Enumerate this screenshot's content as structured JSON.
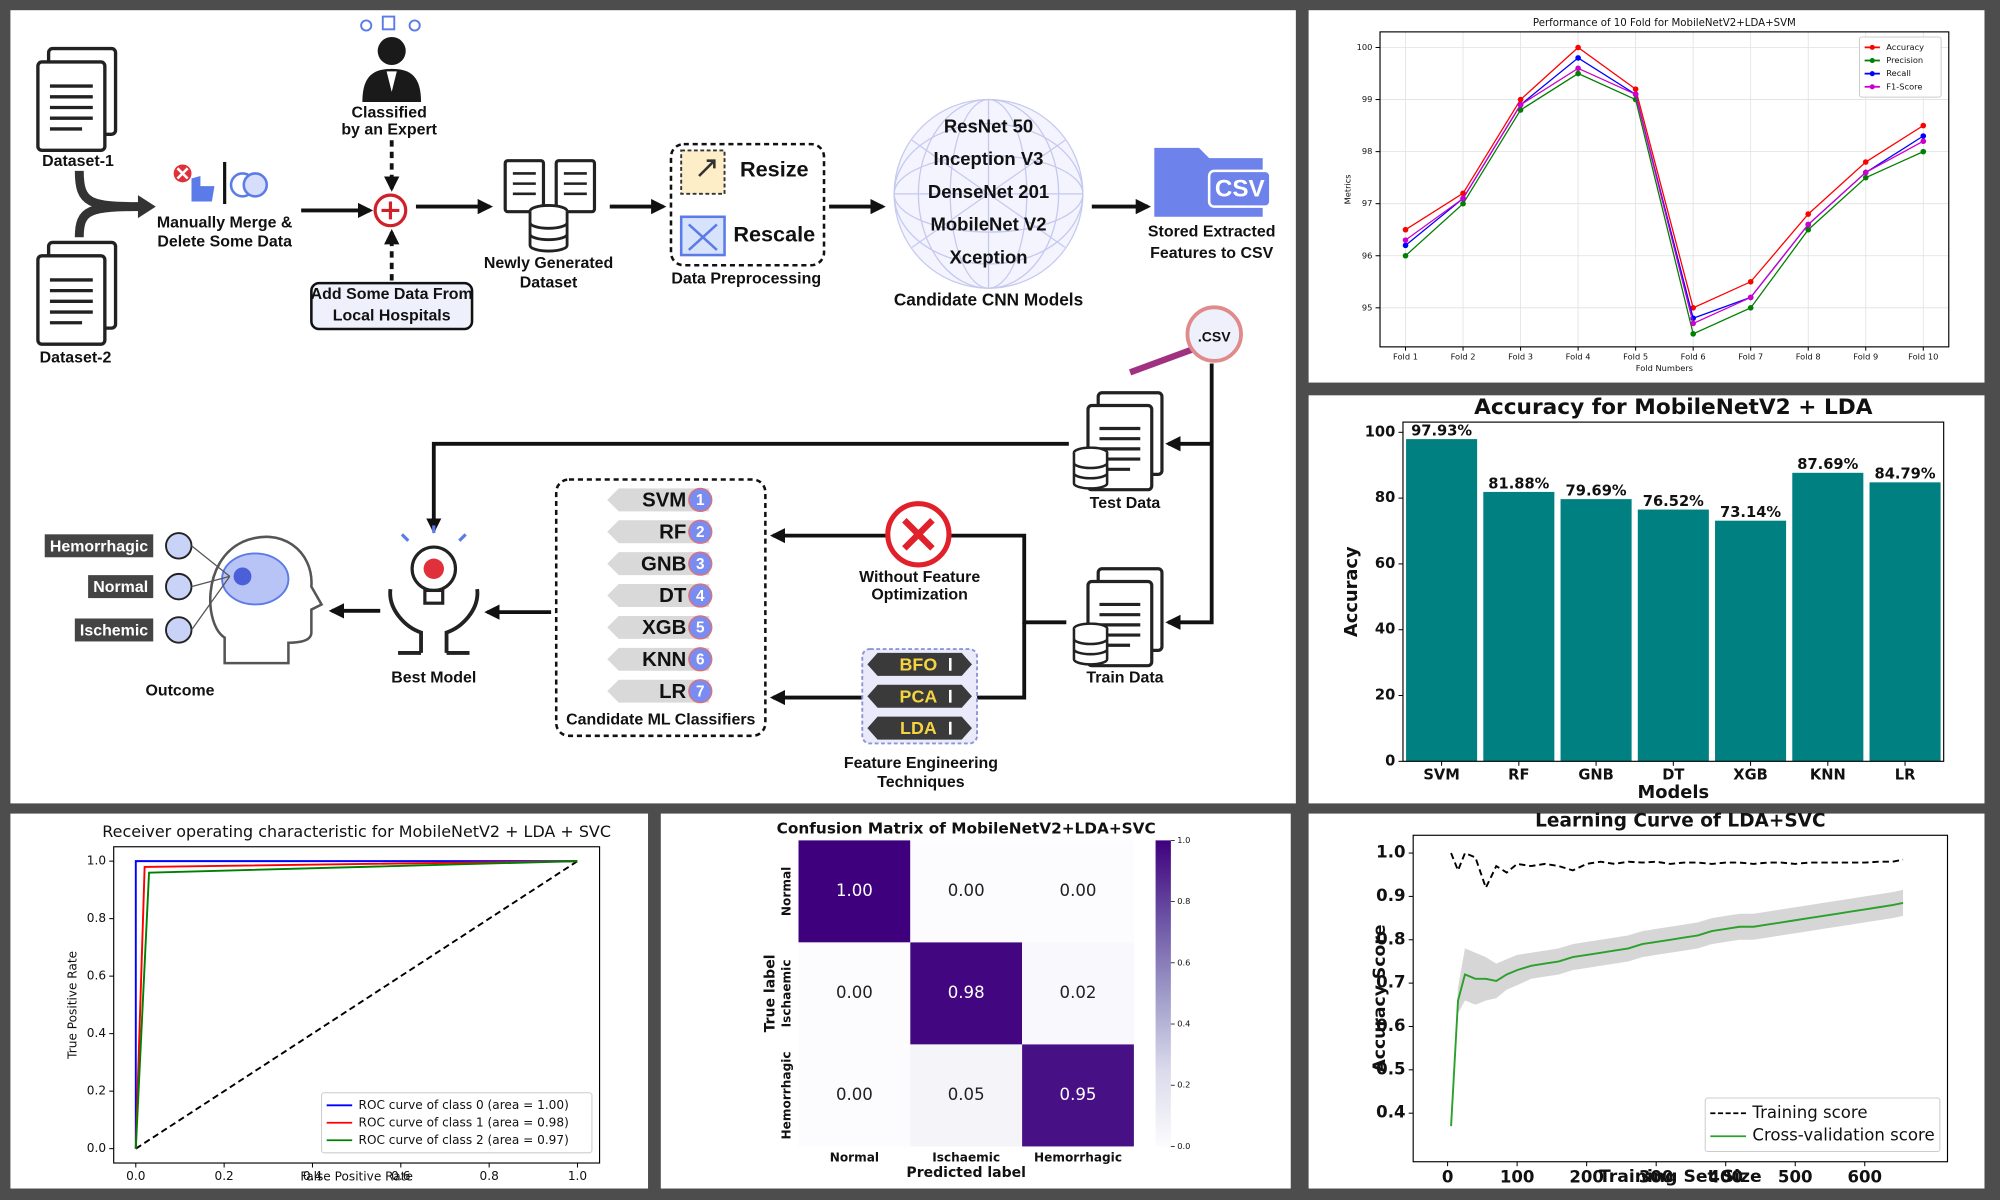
{
  "diagram": {
    "datasets": [
      "Dataset-1",
      "Dataset-2"
    ],
    "merge_step": [
      "Manually Merge &",
      "Delete Some Data"
    ],
    "expert": [
      "Classified",
      "by an Expert"
    ],
    "hospital_data": [
      "Add Some Data From",
      "Local Hospitals"
    ],
    "new_dataset": [
      "Newly Generated",
      "Dataset"
    ],
    "preprocessing": {
      "steps": [
        "Resize",
        "Rescale"
      ],
      "label": "Data Preprocessing"
    },
    "cnn_models": {
      "items": [
        "ResNet 50",
        "Inception V3",
        "DenseNet 201",
        "MobileNet V2",
        "Xception"
      ],
      "label": "Candidate CNN Models"
    },
    "csv_store": {
      "icon": "CSV",
      "label": [
        "Stored Extracted",
        "Features to CSV"
      ]
    },
    "csv_file": ".CSV",
    "test_data": "Test Data",
    "train_data": "Train Data",
    "no_optimization": [
      "Without Feature",
      "Optimization"
    ],
    "feature_engineering": {
      "items": [
        "BFO",
        "PCA",
        "LDA"
      ],
      "label": [
        "Feature Engineering",
        "Techniques"
      ]
    },
    "classifiers": {
      "items": [
        {
          "name": "SVM",
          "number": 1
        },
        {
          "name": "RF",
          "number": 2
        },
        {
          "name": "GNB",
          "number": 3
        },
        {
          "name": "DT",
          "number": 4
        },
        {
          "name": "XGB",
          "number": 5
        },
        {
          "name": "KNN",
          "number": 6
        },
        {
          "name": "LR",
          "number": 7
        }
      ],
      "label": "Candidate ML Classifiers"
    },
    "best_model": "Best Model",
    "outcome": {
      "classes": [
        "Hemorrhagic",
        "Normal",
        "Ischemic"
      ],
      "label": "Outcome"
    }
  },
  "chart_data": [
    {
      "type": "line",
      "title": "Performance of 10 Fold for MobileNetV2+LDA+SVM",
      "x_label": "Fold Numbers",
      "y_label": "Metrics",
      "categories": [
        "Fold 1",
        "Fold 2",
        "Fold 3",
        "Fold 4",
        "Fold 5",
        "Fold 6",
        "Fold 7",
        "Fold 8",
        "Fold 9",
        "Fold 10"
      ],
      "series": [
        {
          "name": "Accuracy",
          "color": "#ff0000",
          "values": [
            96.5,
            97.2,
            99.0,
            100.0,
            99.2,
            95.0,
            95.5,
            96.8,
            97.8,
            98.5
          ]
        },
        {
          "name": "Precision",
          "color": "#008000",
          "values": [
            96.0,
            97.0,
            98.8,
            99.5,
            99.0,
            94.5,
            95.0,
            96.5,
            97.5,
            98.0
          ]
        },
        {
          "name": "Recall",
          "color": "#0000ff",
          "values": [
            96.2,
            97.1,
            98.9,
            99.8,
            99.1,
            94.8,
            95.2,
            96.6,
            97.6,
            98.3
          ]
        },
        {
          "name": "F1-Score",
          "color": "#cc00cc",
          "values": [
            96.3,
            97.1,
            98.9,
            99.6,
            99.1,
            94.7,
            95.2,
            96.6,
            97.6,
            98.2
          ]
        }
      ],
      "markers": true,
      "ylim": [
        94.25,
        100.3
      ],
      "yticks": [
        95,
        96,
        97,
        98,
        99,
        100
      ],
      "grid": true,
      "legend": "upper right"
    },
    {
      "type": "bar",
      "title": "Accuracy for MobileNetV2 + LDA",
      "x_label": "Models",
      "y_label": "Accuracy",
      "categories": [
        "SVM",
        "RF",
        "GNB",
        "DT",
        "XGB",
        "KNN",
        "LR"
      ],
      "values": [
        97.93,
        81.88,
        79.69,
        76.52,
        73.14,
        87.69,
        84.79
      ],
      "value_labels": [
        "97.93%",
        "81.88%",
        "79.69%",
        "76.52%",
        "73.14%",
        "87.69%",
        "84.79%"
      ],
      "color": "#008080",
      "ylim": [
        0,
        103.1
      ],
      "yticks": [
        0,
        20,
        40,
        60,
        80,
        100
      ],
      "grid": false
    },
    {
      "type": "line",
      "title": "Receiver operating characteristic for MobileNetV2 + LDA + SVC",
      "x_label": "False Positive Rate",
      "y_label": "True Positive Rate",
      "series": [
        {
          "name": "ROC curve of class 0 (area = 1.00)",
          "color": "#0000ff",
          "x": [
            0,
            0,
            1
          ],
          "values": [
            0,
            1,
            1
          ]
        },
        {
          "name": "ROC curve of class 1 (area = 0.98)",
          "color": "#ff0000",
          "x": [
            0,
            0.02,
            1
          ],
          "values": [
            0,
            0.98,
            1
          ]
        },
        {
          "name": "ROC curve of class 2 (area = 0.97)",
          "color": "#008000",
          "x": [
            0,
            0.03,
            1
          ],
          "values": [
            0,
            0.96,
            1
          ]
        }
      ],
      "reference_line": {
        "x": [
          0,
          1
        ],
        "values": [
          0,
          1
        ],
        "color": "#000000"
      },
      "xlim": [
        -0.05,
        1.05
      ],
      "ylim": [
        -0.05,
        1.05
      ],
      "xticks": [
        {
          "value": 0,
          "label": "0.0"
        },
        0.2,
        0.4,
        0.6,
        0.8,
        {
          "value": 1,
          "label": "1.0"
        }
      ],
      "yticks": [
        {
          "value": 0,
          "label": "0.0"
        },
        0.2,
        0.4,
        0.6,
        0.8,
        {
          "value": 1,
          "label": "1.0"
        }
      ],
      "grid": false,
      "legend": "lower right"
    },
    {
      "type": "heatmap",
      "title": "Confusion Matrix of MobileNetV2+LDA+SVC",
      "x_label": "Predicted label",
      "y_label": "True label",
      "categories": [
        "Normal",
        "Ischaemic",
        "Hemorrhagic"
      ],
      "values": [
        [
          1.0,
          0.0,
          0.0
        ],
        [
          0.0,
          0.98,
          0.02
        ],
        [
          0.0,
          0.05,
          0.95
        ]
      ],
      "value_labels": [
        [
          "1.00",
          "0.00",
          "0.00"
        ],
        [
          "0.00",
          "0.98",
          "0.02"
        ],
        [
          "0.00",
          "0.05",
          "0.95"
        ]
      ],
      "colors": [
        "#fcfbfd",
        "#dadaeb",
        "#9e9ac8",
        "#6a51a3",
        "#3f007d"
      ],
      "colorbar_lim": [
        0,
        1
      ],
      "colorbar_ticks": [
        {
          "value": 0,
          "label": "0.0"
        },
        0.2,
        0.4,
        0.6,
        0.8,
        {
          "value": 1,
          "label": "1.0"
        }
      ]
    },
    {
      "type": "line",
      "title": "Learning Curve of LDA+SVC",
      "x_label": "Training Set Size",
      "y_label": "Accuracy Score",
      "x": [
        5,
        15,
        25,
        40,
        55,
        70,
        85,
        100,
        120,
        140,
        160,
        180,
        200,
        220,
        240,
        260,
        280,
        300,
        320,
        340,
        360,
        380,
        400,
        420,
        440,
        460,
        480,
        500,
        520,
        540,
        560,
        580,
        600,
        620,
        640,
        655
      ],
      "series": [
        {
          "name": "Training score",
          "color": "#000000",
          "dash": true,
          "values": [
            1.0,
            0.96,
            1.0,
            0.99,
            0.92,
            0.97,
            0.955,
            0.975,
            0.97,
            0.975,
            0.97,
            0.96,
            0.975,
            0.98,
            0.975,
            0.98,
            0.978,
            0.98,
            0.975,
            0.978,
            0.978,
            0.975,
            0.978,
            0.978,
            0.975,
            0.978,
            0.978,
            0.975,
            0.978,
            0.978,
            0.978,
            0.978,
            0.978,
            0.98,
            0.98,
            0.985
          ]
        },
        {
          "name": "Cross-validation score",
          "color": "#2ca02c",
          "band_color": "#cccccc",
          "values": [
            0.37,
            0.66,
            0.72,
            0.71,
            0.71,
            0.705,
            0.72,
            0.73,
            0.74,
            0.745,
            0.75,
            0.76,
            0.765,
            0.77,
            0.775,
            0.78,
            0.79,
            0.795,
            0.8,
            0.805,
            0.81,
            0.82,
            0.825,
            0.83,
            0.83,
            0.835,
            0.84,
            0.845,
            0.85,
            0.855,
            0.86,
            0.865,
            0.87,
            0.875,
            0.88,
            0.885
          ],
          "std": [
            0.0,
            0.03,
            0.06,
            0.06,
            0.05,
            0.04,
            0.035,
            0.035,
            0.03,
            0.03,
            0.03,
            0.03,
            0.03,
            0.03,
            0.03,
            0.03,
            0.03,
            0.03,
            0.03,
            0.03,
            0.03,
            0.03,
            0.03,
            0.03,
            0.03,
            0.03,
            0.03,
            0.03,
            0.03,
            0.03,
            0.03,
            0.03,
            0.03,
            0.03,
            0.03,
            0.03
          ]
        }
      ],
      "xlim": [
        -49.5,
        719
      ],
      "ylim": [
        0.288,
        1.041
      ],
      "xticks": [
        0,
        100,
        200,
        300,
        400,
        500,
        600
      ],
      "yticks": [
        0.4,
        0.5,
        0.6,
        0.7,
        0.8,
        0.9,
        {
          "value": 1,
          "label": "1.0"
        }
      ],
      "grid": false,
      "legend": "lower right"
    }
  ]
}
